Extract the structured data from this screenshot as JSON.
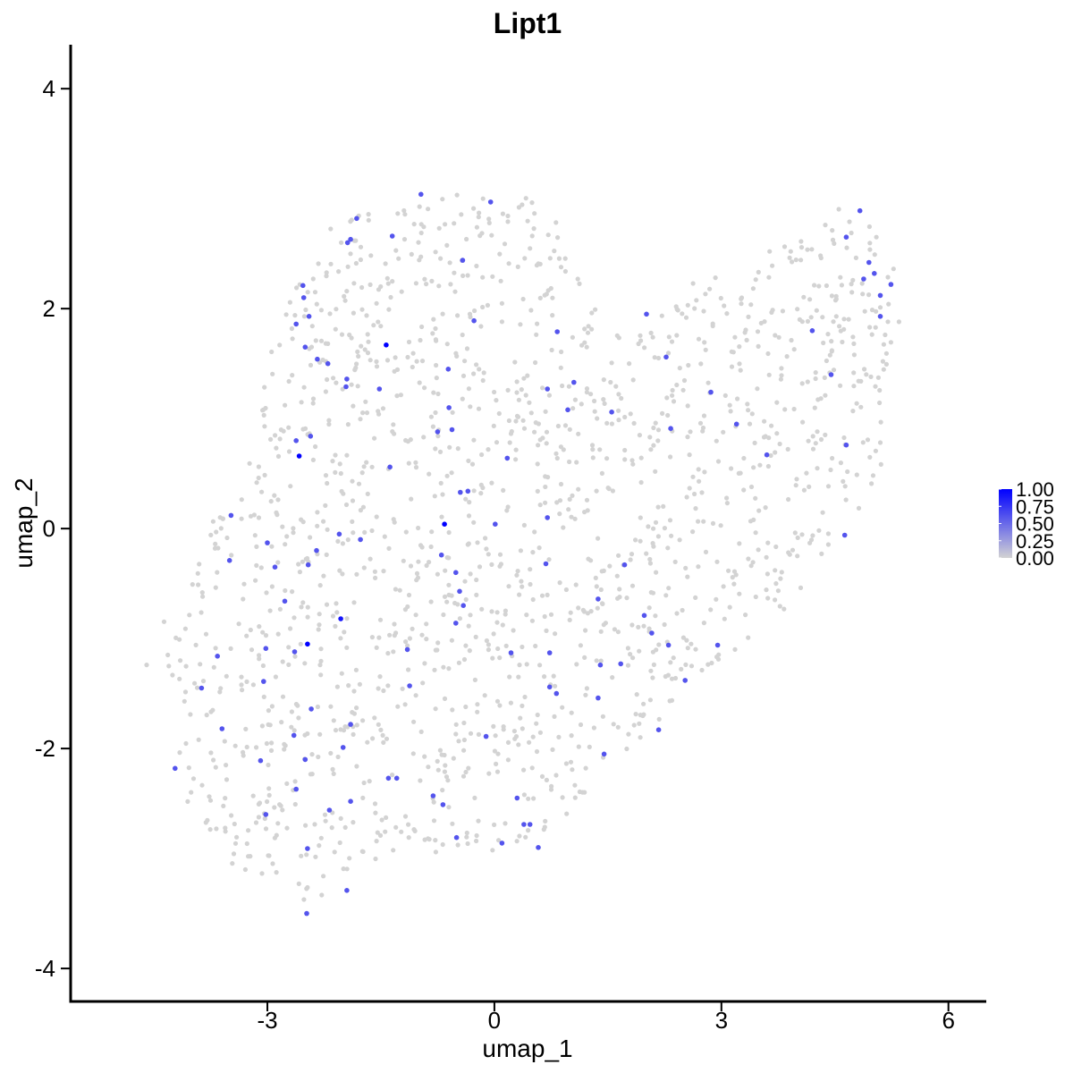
{
  "chart_data": {
    "type": "scatter",
    "title": "Lipt1",
    "xlabel": "umap_1",
    "ylabel": "umap_2",
    "xlim": [
      -5.6,
      6.5
    ],
    "ylim": [
      -4.3,
      4.4
    ],
    "x_ticks": [
      -3,
      0,
      3,
      6
    ],
    "y_ticks": [
      -4,
      -2,
      0,
      2,
      4
    ],
    "x_tick_labels": [
      "-3",
      "0",
      "3",
      "6"
    ],
    "y_tick_labels": [
      "-4",
      "-2",
      "0",
      "2",
      "4"
    ],
    "grid": false,
    "legend_position": "right",
    "color_scale": {
      "low_color": "#d3d3d3",
      "high_color": "#0000ff",
      "range": [
        0,
        1
      ],
      "labels": [
        "1.00",
        "0.75",
        "0.50",
        "0.25",
        "0.00"
      ],
      "values": [
        1.0,
        0.75,
        0.5,
        0.25,
        0.0
      ]
    },
    "series": [
      {
        "kind": "expressing",
        "points": [
          [
            -1.43,
            1.67,
            1.0
          ],
          [
            -2.58,
            0.66,
            1.0
          ],
          [
            -0.66,
            0.04,
            1.0
          ],
          [
            -2.47,
            -1.05,
            1.0
          ],
          [
            -2.03,
            -0.82,
            0.9
          ],
          [
            -2.53,
            2.21,
            0.6
          ],
          [
            -2.52,
            2.1,
            0.6
          ],
          [
            -2.62,
            1.86,
            0.6
          ],
          [
            -2.45,
            1.93,
            0.6
          ],
          [
            -2.5,
            1.65,
            0.6
          ],
          [
            -2.34,
            1.54,
            0.6
          ],
          [
            -2.2,
            1.5,
            0.6
          ],
          [
            -1.96,
            1.29,
            0.6
          ],
          [
            -2.62,
            0.8,
            0.6
          ],
          [
            -2.43,
            0.84,
            0.6
          ],
          [
            -1.82,
            2.82,
            0.6
          ],
          [
            -1.9,
            2.63,
            0.6
          ],
          [
            -1.94,
            2.6,
            0.6
          ],
          [
            -1.35,
            2.66,
            0.6
          ],
          [
            -1.95,
            1.36,
            0.6
          ],
          [
            -1.52,
            1.27,
            0.6
          ],
          [
            -1.38,
            0.56,
            0.6
          ],
          [
            -0.97,
            3.04,
            0.6
          ],
          [
            -0.05,
            2.97,
            0.6
          ],
          [
            -0.42,
            2.44,
            0.6
          ],
          [
            -0.27,
            1.89,
            0.6
          ],
          [
            -0.61,
            1.45,
            0.6
          ],
          [
            -0.6,
            1.1,
            0.6
          ],
          [
            -0.56,
            0.9,
            0.6
          ],
          [
            -0.75,
            0.88,
            0.6
          ],
          [
            -0.45,
            0.33,
            0.6
          ],
          [
            -0.35,
            0.34,
            0.6
          ],
          [
            0.17,
            0.64,
            0.6
          ],
          [
            0.01,
            0.04,
            0.6
          ],
          [
            -3.48,
            0.12,
            0.6
          ],
          [
            -3.5,
            -0.29,
            0.6
          ],
          [
            -3.0,
            -0.13,
            0.6
          ],
          [
            -2.9,
            -0.35,
            0.6
          ],
          [
            -2.46,
            -0.33,
            0.6
          ],
          [
            -2.35,
            -0.2,
            0.6
          ],
          [
            -2.05,
            -0.05,
            0.6
          ],
          [
            -1.77,
            -0.1,
            0.6
          ],
          [
            -2.77,
            -0.66,
            0.6
          ],
          [
            -2.64,
            -1.12,
            0.6
          ],
          [
            -3.02,
            -1.09,
            0.6
          ],
          [
            -3.05,
            -1.39,
            0.6
          ],
          [
            -3.66,
            -1.16,
            0.6
          ],
          [
            -3.87,
            -1.45,
            0.6
          ],
          [
            -3.6,
            -1.82,
            0.6
          ],
          [
            -3.09,
            -2.11,
            0.6
          ],
          [
            -3.02,
            -2.6,
            0.6
          ],
          [
            -2.62,
            -2.37,
            0.6
          ],
          [
            -2.5,
            -2.1,
            0.6
          ],
          [
            -2.65,
            -1.88,
            0.6
          ],
          [
            -2.42,
            -1.64,
            0.6
          ],
          [
            -2.0,
            -1.99,
            0.6
          ],
          [
            -1.9,
            -1.78,
            0.6
          ],
          [
            -1.9,
            -2.48,
            0.6
          ],
          [
            -2.18,
            -2.56,
            0.6
          ],
          [
            -2.47,
            -2.91,
            0.6
          ],
          [
            -1.95,
            -3.29,
            0.6
          ],
          [
            -2.48,
            -3.5,
            0.6
          ],
          [
            -4.22,
            -2.18,
            0.6
          ],
          [
            -1.4,
            -2.27,
            0.6
          ],
          [
            -1.29,
            -2.27,
            0.6
          ],
          [
            -1.15,
            -1.1,
            0.6
          ],
          [
            -1.12,
            -1.43,
            0.6
          ],
          [
            -0.81,
            -2.43,
            0.6
          ],
          [
            -0.68,
            -2.51,
            0.6
          ],
          [
            -0.7,
            -0.24,
            0.6
          ],
          [
            -0.51,
            -0.4,
            0.6
          ],
          [
            -0.46,
            -0.57,
            0.6
          ],
          [
            -0.41,
            -0.7,
            0.6
          ],
          [
            -0.51,
            -0.86,
            0.6
          ],
          [
            -0.11,
            -1.89,
            0.6
          ],
          [
            0.22,
            -1.13,
            0.6
          ],
          [
            -0.5,
            -2.81,
            0.6
          ],
          [
            0.1,
            -2.86,
            0.6
          ],
          [
            0.3,
            -2.45,
            0.6
          ],
          [
            0.39,
            -2.69,
            0.6
          ],
          [
            0.47,
            -2.69,
            0.6
          ],
          [
            0.58,
            -2.9,
            0.6
          ],
          [
            0.68,
            -0.32,
            0.6
          ],
          [
            0.73,
            -1.13,
            0.6
          ],
          [
            0.73,
            -1.44,
            0.6
          ],
          [
            0.82,
            -1.5,
            0.6
          ],
          [
            0.7,
            0.1,
            0.6
          ],
          [
            0.7,
            1.27,
            0.6
          ],
          [
            0.97,
            1.08,
            0.6
          ],
          [
            1.05,
            1.33,
            0.6
          ],
          [
            0.83,
            1.79,
            0.6
          ],
          [
            1.55,
            1.06,
            0.6
          ],
          [
            1.37,
            -1.54,
            0.6
          ],
          [
            1.4,
            -1.24,
            0.6
          ],
          [
            1.67,
            -1.23,
            0.6
          ],
          [
            1.72,
            -0.33,
            0.6
          ],
          [
            1.98,
            -0.79,
            0.6
          ],
          [
            2.08,
            -0.95,
            0.6
          ],
          [
            2.3,
            -1.06,
            0.6
          ],
          [
            1.45,
            -2.05,
            0.6
          ],
          [
            2.17,
            -1.83,
            0.6
          ],
          [
            2.52,
            -1.38,
            0.6
          ],
          [
            2.95,
            -1.06,
            0.6
          ],
          [
            2.01,
            1.95,
            0.6
          ],
          [
            2.27,
            1.56,
            0.6
          ],
          [
            2.33,
            0.91,
            0.6
          ],
          [
            2.86,
            1.24,
            0.6
          ],
          [
            3.2,
            0.95,
            0.6
          ],
          [
            3.6,
            0.67,
            0.6
          ],
          [
            4.2,
            1.8,
            0.6
          ],
          [
            4.45,
            1.4,
            0.6
          ],
          [
            4.65,
            0.76,
            0.6
          ],
          [
            4.63,
            -0.06,
            0.6
          ],
          [
            4.65,
            2.65,
            0.6
          ],
          [
            4.83,
            2.89,
            0.6
          ],
          [
            4.95,
            2.42,
            0.6
          ],
          [
            5.02,
            2.32,
            0.6
          ],
          [
            4.88,
            2.27,
            0.6
          ],
          [
            5.1,
            2.12,
            0.6
          ],
          [
            5.24,
            2.22,
            0.6
          ],
          [
            5.1,
            1.93,
            0.6
          ],
          [
            1.37,
            -0.64,
            0.6
          ]
        ]
      },
      {
        "kind": "non-expressing",
        "value": 0.0,
        "n_points": 1600
      }
    ]
  }
}
